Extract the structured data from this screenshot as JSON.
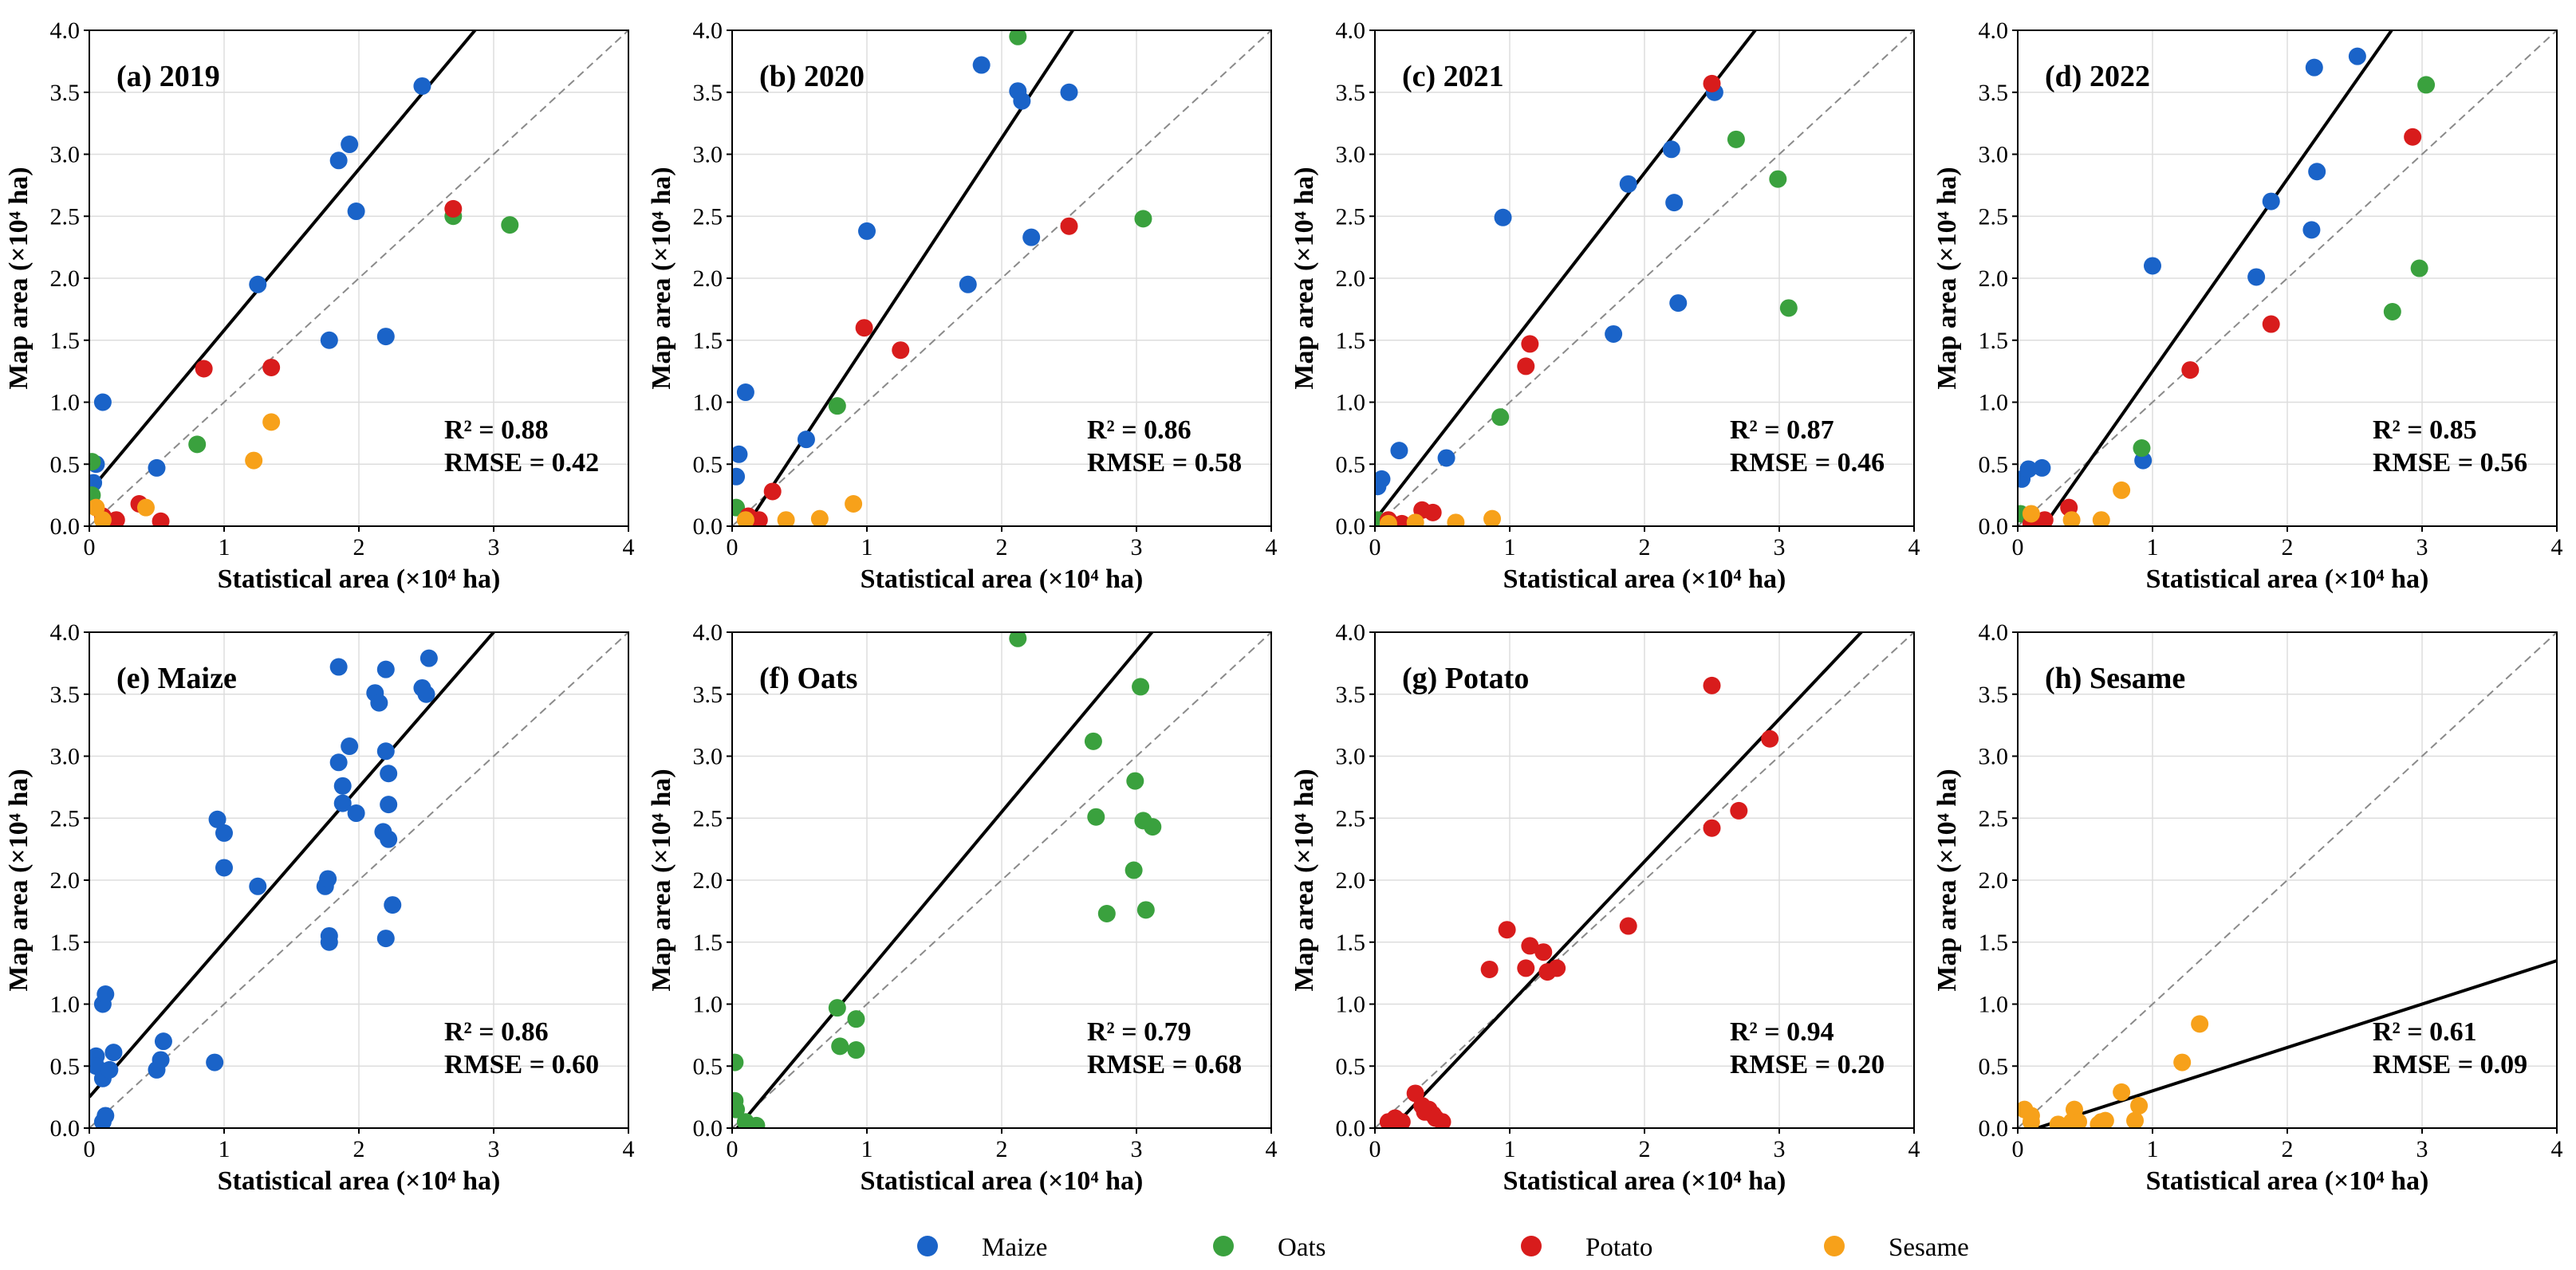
{
  "chart_data": {
    "type": "scatter",
    "colors": {
      "Maize": "#1a63c8",
      "Oats": "#3aa13e",
      "Potato": "#d81c1c",
      "Sesame": "#f7a11a"
    },
    "legend": {
      "placement": "bottom-center",
      "entries": [
        "Maize",
        "Oats",
        "Potato",
        "Sesame"
      ]
    },
    "axes": {
      "xlabel": "Statistical area (×10⁴ ha)",
      "ylabel": "Map area (×10⁴ ha)",
      "xlim": [
        0,
        4
      ],
      "ylim": [
        0,
        4
      ],
      "xticks": [
        "0",
        "1",
        "2",
        "3",
        "4"
      ],
      "yticks": [
        "0.0",
        "0.5",
        "1.0",
        "1.5",
        "2.0",
        "2.5",
        "3.0",
        "3.5",
        "4.0"
      ],
      "grid": true,
      "reference_line": "1:1 dashed"
    },
    "panels": [
      {
        "title": "(a) 2019",
        "r2": "R² = 0.88",
        "rmse": "RMSE = 0.42",
        "fit": [
          0.28,
          1.3
        ],
        "series": [
          {
            "name": "Maize",
            "points": [
              [
                0.05,
                0.5
              ],
              [
                0.1,
                1.0
              ],
              [
                0.5,
                0.47
              ],
              [
                1.25,
                1.95
              ],
              [
                1.78,
                1.5
              ],
              [
                1.85,
                2.95
              ],
              [
                1.93,
                3.08
              ],
              [
                1.98,
                2.54
              ],
              [
                2.2,
                1.53
              ],
              [
                2.47,
                3.55
              ],
              [
                0.03,
                0.35
              ]
            ]
          },
          {
            "name": "Oats",
            "points": [
              [
                0.02,
                0.52
              ],
              [
                0.02,
                0.25
              ],
              [
                0.8,
                0.66
              ],
              [
                2.7,
                2.5
              ],
              [
                3.12,
                2.43
              ]
            ]
          },
          {
            "name": "Potato",
            "points": [
              [
                0.2,
                0.05
              ],
              [
                0.37,
                0.18
              ],
              [
                0.53,
                0.04
              ],
              [
                0.85,
                1.27
              ],
              [
                1.35,
                1.28
              ],
              [
                2.7,
                2.56
              ],
              [
                0.1,
                0.08
              ]
            ]
          },
          {
            "name": "Sesame",
            "points": [
              [
                0.05,
                0.15
              ],
              [
                0.42,
                0.15
              ],
              [
                1.22,
                0.53
              ],
              [
                1.35,
                0.84
              ],
              [
                0.1,
                0.05
              ]
            ]
          }
        ]
      },
      {
        "title": "(b) 2020",
        "r2": "R² = 0.86",
        "rmse": "RMSE = 0.58",
        "fit": [
          -0.17,
          1.65
        ],
        "series": [
          {
            "name": "Maize",
            "points": [
              [
                0.05,
                0.58
              ],
              [
                0.1,
                1.08
              ],
              [
                0.55,
                0.7
              ],
              [
                1.0,
                2.38
              ],
              [
                1.75,
                1.95
              ],
              [
                1.85,
                3.72
              ],
              [
                2.12,
                3.51
              ],
              [
                2.15,
                3.43
              ],
              [
                2.22,
                2.33
              ],
              [
                2.5,
                3.5
              ],
              [
                0.03,
                0.4
              ]
            ]
          },
          {
            "name": "Oats",
            "points": [
              [
                0.03,
                0.15
              ],
              [
                0.78,
                0.97
              ],
              [
                2.12,
                3.95
              ],
              [
                3.05,
                2.48
              ]
            ]
          },
          {
            "name": "Potato",
            "points": [
              [
                0.2,
                0.05
              ],
              [
                0.3,
                0.28
              ],
              [
                0.98,
                1.6
              ],
              [
                1.25,
                1.42
              ],
              [
                2.5,
                2.42
              ],
              [
                0.12,
                0.08
              ]
            ]
          },
          {
            "name": "Sesame",
            "points": [
              [
                0.4,
                0.05
              ],
              [
                0.65,
                0.06
              ],
              [
                0.9,
                0.18
              ],
              [
                0.1,
                0.05
              ]
            ]
          }
        ]
      },
      {
        "title": "(c) 2021",
        "r2": "R² = 0.87",
        "rmse": "RMSE = 0.46",
        "fit": [
          0.05,
          1.4
        ],
        "series": [
          {
            "name": "Maize",
            "points": [
              [
                0.02,
                0.32
              ],
              [
                0.05,
                0.38
              ],
              [
                0.18,
                0.61
              ],
              [
                0.53,
                0.55
              ],
              [
                0.95,
                2.49
              ],
              [
                1.77,
                1.55
              ],
              [
                1.88,
                2.76
              ],
              [
                2.2,
                3.04
              ],
              [
                2.22,
                2.61
              ],
              [
                2.25,
                1.8
              ],
              [
                2.52,
                3.5
              ]
            ]
          },
          {
            "name": "Oats",
            "points": [
              [
                0.02,
                0.05
              ],
              [
                0.93,
                0.88
              ],
              [
                2.68,
                3.12
              ],
              [
                2.99,
                2.8
              ],
              [
                3.07,
                1.76
              ]
            ]
          },
          {
            "name": "Potato",
            "points": [
              [
                0.1,
                0.05
              ],
              [
                0.35,
                0.13
              ],
              [
                0.43,
                0.11
              ],
              [
                1.12,
                1.29
              ],
              [
                1.15,
                1.47
              ],
              [
                2.5,
                3.57
              ],
              [
                0.2,
                0.02
              ]
            ]
          },
          {
            "name": "Sesame",
            "points": [
              [
                0.3,
                0.03
              ],
              [
                0.6,
                0.03
              ],
              [
                0.87,
                0.06
              ],
              [
                0.1,
                0.02
              ]
            ]
          }
        ]
      },
      {
        "title": "(d) 2022",
        "r2": "R² = 0.85",
        "rmse": "RMSE = 0.56",
        "fit": [
          -0.3,
          1.55
        ],
        "series": [
          {
            "name": "Maize",
            "points": [
              [
                0.03,
                0.38
              ],
              [
                0.08,
                0.46
              ],
              [
                0.18,
                0.47
              ],
              [
                0.93,
                0.53
              ],
              [
                1.0,
                2.1
              ],
              [
                1.77,
                2.01
              ],
              [
                1.88,
                2.62
              ],
              [
                2.18,
                2.39
              ],
              [
                2.2,
                3.7
              ],
              [
                2.22,
                2.86
              ],
              [
                2.52,
                3.79
              ]
            ]
          },
          {
            "name": "Oats",
            "points": [
              [
                0.02,
                0.1
              ],
              [
                0.92,
                0.63
              ],
              [
                2.78,
                1.73
              ],
              [
                2.98,
                2.08
              ],
              [
                3.03,
                3.56
              ]
            ]
          },
          {
            "name": "Potato",
            "points": [
              [
                0.2,
                0.05
              ],
              [
                0.38,
                0.15
              ],
              [
                1.28,
                1.26
              ],
              [
                1.88,
                1.63
              ],
              [
                2.93,
                3.14
              ],
              [
                0.1,
                0.02
              ]
            ]
          },
          {
            "name": "Sesame",
            "points": [
              [
                0.1,
                0.1
              ],
              [
                0.4,
                0.05
              ],
              [
                0.62,
                0.05
              ],
              [
                0.77,
                0.29
              ]
            ]
          }
        ]
      },
      {
        "title": "(e) Maize",
        "r2": "R² = 0.86",
        "rmse": "RMSE = 0.60",
        "fit": [
          0.25,
          1.25
        ],
        "series": [
          {
            "name": "Maize",
            "points": [
              [
                0.05,
                0.58
              ],
              [
                0.05,
                0.5
              ],
              [
                0.1,
                0.4
              ],
              [
                0.1,
                1.0
              ],
              [
                0.12,
                1.08
              ],
              [
                0.15,
                0.47
              ],
              [
                0.18,
                0.61
              ],
              [
                0.1,
                0.05
              ],
              [
                0.12,
                0.1
              ],
              [
                0.5,
                0.47
              ],
              [
                0.53,
                0.55
              ],
              [
                0.55,
                0.7
              ],
              [
                0.93,
                0.53
              ],
              [
                0.95,
                2.49
              ],
              [
                1.0,
                2.38
              ],
              [
                1.0,
                2.1
              ],
              [
                1.25,
                1.95
              ],
              [
                1.75,
                1.95
              ],
              [
                1.77,
                2.01
              ],
              [
                1.78,
                1.55
              ],
              [
                1.78,
                1.5
              ],
              [
                1.85,
                2.95
              ],
              [
                1.85,
                3.72
              ],
              [
                1.88,
                2.62
              ],
              [
                1.88,
                2.76
              ],
              [
                1.93,
                3.08
              ],
              [
                1.98,
                2.54
              ],
              [
                2.12,
                3.51
              ],
              [
                2.15,
                3.43
              ],
              [
                2.18,
                2.39
              ],
              [
                2.2,
                3.7
              ],
              [
                2.2,
                3.04
              ],
              [
                2.2,
                1.53
              ],
              [
                2.22,
                2.61
              ],
              [
                2.22,
                2.86
              ],
              [
                2.22,
                2.33
              ],
              [
                2.25,
                1.8
              ],
              [
                2.47,
                3.55
              ],
              [
                2.5,
                3.5
              ],
              [
                2.52,
                3.79
              ]
            ]
          }
        ]
      },
      {
        "title": "(f) Oats",
        "r2": "R² = 0.79",
        "rmse": "RMSE = 0.68",
        "fit": [
          -0.05,
          1.3
        ],
        "series": [
          {
            "name": "Oats",
            "points": [
              [
                0.02,
                0.53
              ],
              [
                0.02,
                0.22
              ],
              [
                0.03,
                0.15
              ],
              [
                0.1,
                0.05
              ],
              [
                0.18,
                0.02
              ],
              [
                0.78,
                0.97
              ],
              [
                0.8,
                0.66
              ],
              [
                0.92,
                0.88
              ],
              [
                0.92,
                0.63
              ],
              [
                2.12,
                3.95
              ],
              [
                2.68,
                3.12
              ],
              [
                2.7,
                2.51
              ],
              [
                2.78,
                1.73
              ],
              [
                2.98,
                2.08
              ],
              [
                2.99,
                2.8
              ],
              [
                3.03,
                3.56
              ],
              [
                3.05,
                2.48
              ],
              [
                3.07,
                1.76
              ],
              [
                3.12,
                2.43
              ]
            ]
          }
        ]
      },
      {
        "title": "(g) Potato",
        "r2": "R² = 0.94",
        "rmse": "RMSE = 0.20",
        "fit": [
          -0.15,
          1.15
        ],
        "series": [
          {
            "name": "Potato",
            "points": [
              [
                0.1,
                0.05
              ],
              [
                0.15,
                0.08
              ],
              [
                0.2,
                0.05
              ],
              [
                0.3,
                0.28
              ],
              [
                0.35,
                0.18
              ],
              [
                0.37,
                0.13
              ],
              [
                0.4,
                0.15
              ],
              [
                0.43,
                0.11
              ],
              [
                0.45,
                0.08
              ],
              [
                0.5,
                0.05
              ],
              [
                0.85,
                1.28
              ],
              [
                0.98,
                1.6
              ],
              [
                1.12,
                1.29
              ],
              [
                1.15,
                1.47
              ],
              [
                1.25,
                1.42
              ],
              [
                1.28,
                1.26
              ],
              [
                1.35,
                1.29
              ],
              [
                1.88,
                1.63
              ],
              [
                2.5,
                2.42
              ],
              [
                2.5,
                3.57
              ],
              [
                2.7,
                2.56
              ],
              [
                2.93,
                3.14
              ]
            ]
          }
        ]
      },
      {
        "title": "(h) Sesame",
        "r2": "R² = 0.61",
        "rmse": "RMSE = 0.09",
        "fit": [
          -0.05,
          0.35
        ],
        "series": [
          {
            "name": "Sesame",
            "points": [
              [
                0.05,
                0.15
              ],
              [
                0.1,
                0.1
              ],
              [
                0.1,
                0.05
              ],
              [
                0.3,
                0.03
              ],
              [
                0.4,
                0.05
              ],
              [
                0.42,
                0.15
              ],
              [
                0.45,
                0.05
              ],
              [
                0.6,
                0.03
              ],
              [
                0.62,
                0.05
              ],
              [
                0.65,
                0.06
              ],
              [
                0.77,
                0.29
              ],
              [
                0.87,
                0.06
              ],
              [
                0.9,
                0.18
              ],
              [
                1.22,
                0.53
              ],
              [
                1.35,
                0.84
              ]
            ]
          }
        ]
      }
    ]
  }
}
